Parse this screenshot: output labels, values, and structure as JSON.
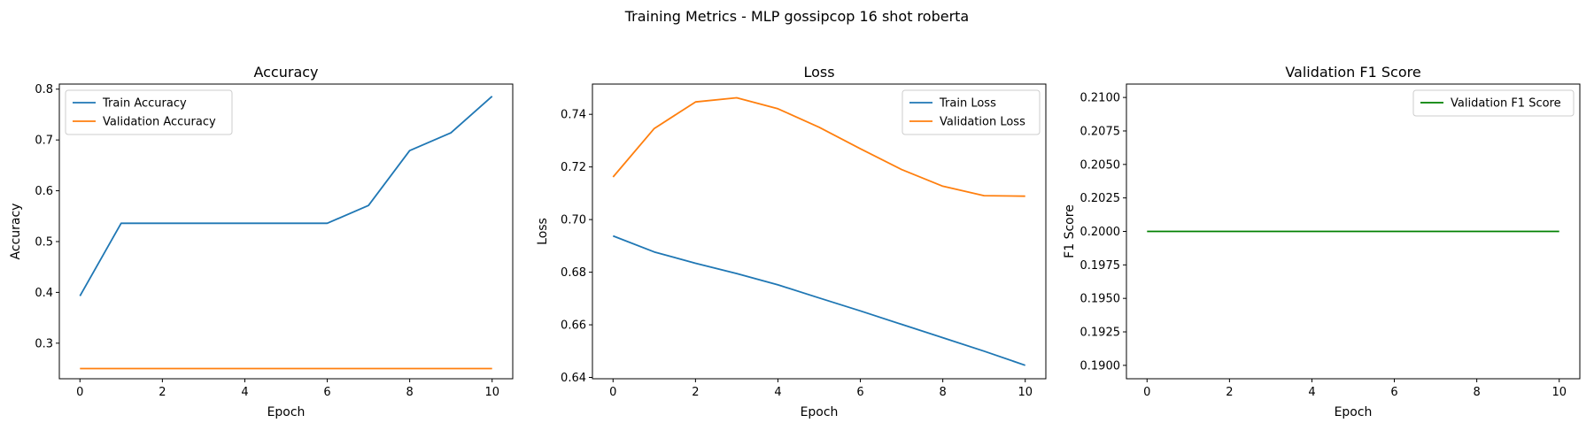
{
  "figure": {
    "suptitle": "Training Metrics - MLP gossipcop 16 shot roberta"
  },
  "chart_data": [
    {
      "type": "line",
      "title": "Accuracy",
      "xlabel": "Epoch",
      "ylabel": "Accuracy",
      "xlim": [
        -0.5,
        10.5
      ],
      "ylim": [
        0.23,
        0.81
      ],
      "xticks": [
        0,
        2,
        4,
        6,
        8,
        10
      ],
      "yticks": [
        0.3,
        0.4,
        0.5,
        0.6,
        0.7,
        0.8
      ],
      "ytick_decimals": 1,
      "legend_loc": "upper-left",
      "grid": false,
      "x": [
        0,
        1,
        2,
        3,
        4,
        5,
        6,
        7,
        8,
        9,
        10
      ],
      "series": [
        {
          "name": "Train Accuracy",
          "color": "#1f77b4",
          "values": [
            0.393,
            0.536,
            0.536,
            0.536,
            0.536,
            0.536,
            0.536,
            0.571,
            0.679,
            0.714,
            0.786
          ]
        },
        {
          "name": "Validation Accuracy",
          "color": "#ff7f0e",
          "values": [
            0.25,
            0.25,
            0.25,
            0.25,
            0.25,
            0.25,
            0.25,
            0.25,
            0.25,
            0.25,
            0.25
          ]
        }
      ]
    },
    {
      "type": "line",
      "title": "Loss",
      "xlabel": "Epoch",
      "ylabel": "Loss",
      "xlim": [
        -0.5,
        10.5
      ],
      "ylim": [
        0.6395,
        0.7515
      ],
      "xticks": [
        0,
        2,
        4,
        6,
        8,
        10
      ],
      "yticks": [
        0.64,
        0.66,
        0.68,
        0.7,
        0.72,
        0.74
      ],
      "ytick_decimals": 2,
      "legend_loc": "upper-right",
      "grid": false,
      "x": [
        0,
        1,
        2,
        3,
        4,
        5,
        6,
        7,
        8,
        9,
        10
      ],
      "series": [
        {
          "name": "Train Loss",
          "color": "#1f77b4",
          "values": [
            0.6938,
            0.6877,
            0.6834,
            0.6795,
            0.6752,
            0.6702,
            0.6653,
            0.6602,
            0.6551,
            0.65,
            0.6446
          ]
        },
        {
          "name": "Validation Loss",
          "color": "#ff7f0e",
          "values": [
            0.7162,
            0.7346,
            0.7447,
            0.7463,
            0.7421,
            0.7351,
            0.7269,
            0.719,
            0.7127,
            0.7091,
            0.7089
          ]
        }
      ]
    },
    {
      "type": "line",
      "title": "Validation F1 Score",
      "xlabel": "Epoch",
      "ylabel": "F1 Score",
      "xlim": [
        -0.5,
        10.5
      ],
      "ylim": [
        0.189,
        0.211
      ],
      "xticks": [
        0,
        2,
        4,
        6,
        8,
        10
      ],
      "yticks": [
        0.19,
        0.1925,
        0.195,
        0.1975,
        0.2,
        0.2025,
        0.205,
        0.2075,
        0.21
      ],
      "ytick_decimals": 4,
      "legend_loc": "upper-right",
      "grid": false,
      "x": [
        0,
        1,
        2,
        3,
        4,
        5,
        6,
        7,
        8,
        9,
        10
      ],
      "series": [
        {
          "name": "Validation F1 Score",
          "color": "#008000",
          "values": [
            0.2,
            0.2,
            0.2,
            0.2,
            0.2,
            0.2,
            0.2,
            0.2,
            0.2,
            0.2,
            0.2
          ]
        }
      ]
    }
  ]
}
